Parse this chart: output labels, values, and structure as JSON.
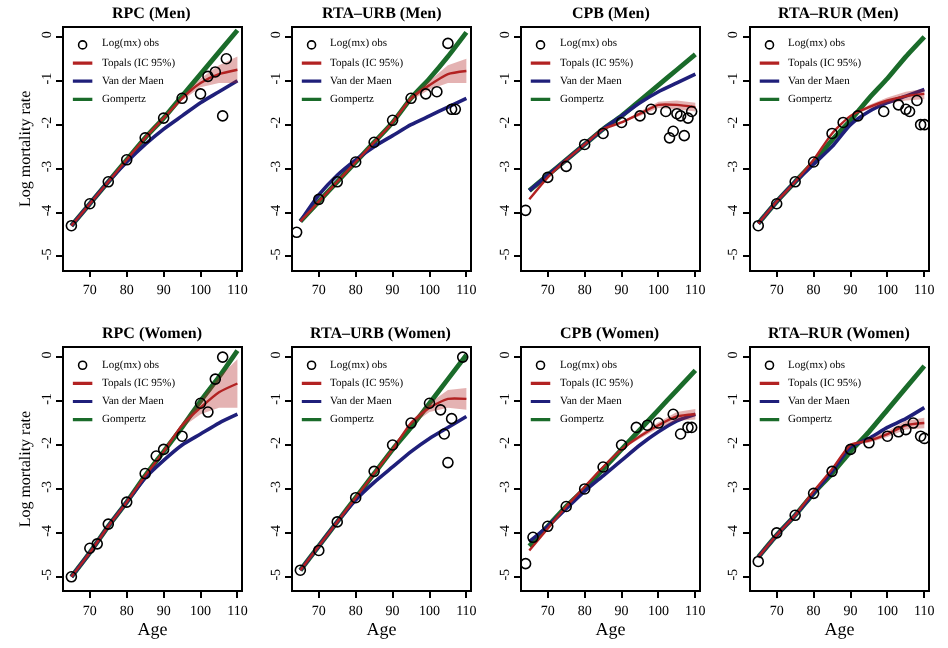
{
  "chart_data": [
    {
      "type": "line",
      "title": "RPC (Men)",
      "ylabel": "Log mortality rate",
      "x": [
        65,
        70,
        75,
        80,
        85,
        90,
        95,
        100,
        105,
        110
      ],
      "xlim": [
        63,
        111
      ],
      "xticks": [
        70,
        80,
        90,
        100,
        110
      ],
      "ylim": [
        -5.3,
        0.2
      ],
      "yticks": [
        -5,
        -4,
        -3,
        -2,
        -1,
        0
      ],
      "legend": "top left",
      "series": [
        {
          "name": "Log(mx) obs",
          "type": "scatter",
          "marker": "circle",
          "color": "#000000",
          "x": [
            65,
            70,
            75,
            80,
            85,
            90,
            95,
            100,
            102,
            104,
            106,
            107
          ],
          "values": [
            -4.3,
            -3.8,
            -3.3,
            -2.8,
            -2.3,
            -1.85,
            -1.4,
            -1.3,
            -0.9,
            -0.8,
            -1.8,
            -0.5
          ]
        },
        {
          "name": "Topals (IC 95%)",
          "marker": "none",
          "color": "#b22222",
          "values": [
            -4.3,
            -3.8,
            -3.3,
            -2.8,
            -2.3,
            -1.85,
            -1.4,
            -1.05,
            -0.85,
            -0.75
          ],
          "lower": [
            -4.3,
            -3.8,
            -3.3,
            -2.8,
            -2.3,
            -1.85,
            -1.45,
            -1.15,
            -1.05,
            -1.05
          ],
          "upper": [
            -4.3,
            -3.8,
            -3.3,
            -2.8,
            -2.3,
            -1.85,
            -1.35,
            -0.95,
            -0.65,
            -0.45
          ]
        },
        {
          "name": "Van der Maen",
          "marker": "none",
          "color": "#1f1f7a",
          "values": [
            -4.3,
            -3.8,
            -3.3,
            -2.85,
            -2.45,
            -2.1,
            -1.8,
            -1.5,
            -1.25,
            -1.0
          ]
        },
        {
          "name": "Gompertz",
          "marker": "none",
          "color": "#1a6b2a",
          "values": [
            -4.3,
            -3.8,
            -3.3,
            -2.8,
            -2.3,
            -1.85,
            -1.35,
            -0.85,
            -0.35,
            0.15
          ]
        }
      ]
    },
    {
      "type": "line",
      "title": "RTA–URB (Men)",
      "x": [
        65,
        70,
        75,
        80,
        85,
        90,
        95,
        100,
        105,
        110
      ],
      "xlim": [
        63,
        111
      ],
      "xticks": [
        70,
        80,
        90,
        100,
        110
      ],
      "ylim": [
        -5.3,
        0.2
      ],
      "yticks": [
        -5,
        -4,
        -3,
        -2,
        -1,
        0
      ],
      "legend": "top left",
      "series": [
        {
          "name": "Log(mx) obs",
          "type": "scatter",
          "marker": "circle",
          "color": "#000000",
          "x": [
            64,
            70,
            75,
            80,
            85,
            90,
            95,
            99,
            102,
            105,
            106,
            107
          ],
          "values": [
            -4.45,
            -3.7,
            -3.3,
            -2.85,
            -2.4,
            -1.9,
            -1.4,
            -1.3,
            -1.25,
            -0.15,
            -1.65,
            -1.65
          ]
        },
        {
          "name": "Topals (IC 95%)",
          "marker": "none",
          "color": "#b22222",
          "values": [
            -4.2,
            -3.75,
            -3.3,
            -2.85,
            -2.4,
            -1.95,
            -1.4,
            -1.1,
            -0.85,
            -0.78
          ],
          "lower": [
            -4.2,
            -3.75,
            -3.3,
            -2.85,
            -2.4,
            -1.95,
            -1.45,
            -1.2,
            -1.05,
            -1.05
          ],
          "upper": [
            -4.2,
            -3.75,
            -3.3,
            -2.85,
            -2.4,
            -1.95,
            -1.35,
            -1.0,
            -0.65,
            -0.5
          ]
        },
        {
          "name": "Van der Maen",
          "marker": "none",
          "color": "#1f1f7a",
          "values": [
            -4.2,
            -3.6,
            -3.15,
            -2.8,
            -2.5,
            -2.25,
            -2.0,
            -1.8,
            -1.6,
            -1.4
          ]
        },
        {
          "name": "Gompertz",
          "marker": "none",
          "color": "#1a6b2a",
          "values": [
            -4.2,
            -3.75,
            -3.3,
            -2.85,
            -2.4,
            -1.95,
            -1.4,
            -0.95,
            -0.45,
            0.1
          ]
        }
      ]
    },
    {
      "type": "line",
      "title": "CPB (Men)",
      "x": [
        65,
        70,
        75,
        80,
        85,
        90,
        95,
        100,
        105,
        110
      ],
      "xlim": [
        63,
        111
      ],
      "xticks": [
        70,
        80,
        90,
        100,
        110
      ],
      "ylim": [
        -5.3,
        0.2
      ],
      "yticks": [
        -5,
        -4,
        -3,
        -2,
        -1,
        0
      ],
      "legend": "top left",
      "series": [
        {
          "name": "Log(mx) obs",
          "type": "scatter",
          "marker": "circle",
          "color": "#000000",
          "x": [
            64,
            70,
            75,
            80,
            85,
            90,
            95,
            98,
            102,
            103,
            104,
            105,
            106,
            107,
            108,
            109
          ],
          "values": [
            -3.95,
            -3.2,
            -2.95,
            -2.45,
            -2.2,
            -1.95,
            -1.8,
            -1.65,
            -1.7,
            -2.3,
            -2.15,
            -1.75,
            -1.8,
            -2.25,
            -1.85,
            -1.7
          ]
        },
        {
          "name": "Topals (IC 95%)",
          "marker": "none",
          "color": "#b22222",
          "values": [
            -3.7,
            -3.2,
            -2.8,
            -2.45,
            -2.1,
            -1.95,
            -1.75,
            -1.55,
            -1.55,
            -1.6
          ],
          "lower": [
            -3.7,
            -3.2,
            -2.8,
            -2.45,
            -2.1,
            -1.95,
            -1.8,
            -1.62,
            -1.65,
            -1.7
          ],
          "upper": [
            -3.7,
            -3.2,
            -2.8,
            -2.45,
            -2.1,
            -1.95,
            -1.7,
            -1.48,
            -1.45,
            -1.5
          ]
        },
        {
          "name": "Van der Maen",
          "marker": "none",
          "color": "#1f1f7a",
          "values": [
            -3.5,
            -3.15,
            -2.8,
            -2.45,
            -2.1,
            -1.8,
            -1.5,
            -1.25,
            -1.05,
            -0.85
          ]
        },
        {
          "name": "Gompertz",
          "marker": "none",
          "color": "#1a6b2a",
          "values": [
            -3.5,
            -3.15,
            -2.8,
            -2.45,
            -2.1,
            -1.8,
            -1.45,
            -1.1,
            -0.75,
            -0.4
          ]
        }
      ]
    },
    {
      "type": "line",
      "title": "RTA–RUR (Men)",
      "x": [
        65,
        70,
        75,
        80,
        85,
        90,
        95,
        100,
        105,
        110
      ],
      "xlim": [
        63,
        111
      ],
      "xticks": [
        70,
        80,
        90,
        100,
        110
      ],
      "ylim": [
        -5.3,
        0.2
      ],
      "yticks": [
        -5,
        -4,
        -3,
        -2,
        -1,
        0
      ],
      "legend": "top left",
      "series": [
        {
          "name": "Log(mx) obs",
          "type": "scatter",
          "marker": "circle",
          "color": "#000000",
          "x": [
            65,
            70,
            75,
            80,
            85,
            88,
            92,
            99,
            103,
            105,
            106,
            108,
            109,
            110
          ],
          "values": [
            -4.3,
            -3.8,
            -3.3,
            -2.85,
            -2.2,
            -1.95,
            -1.8,
            -1.7,
            -1.55,
            -1.65,
            -1.7,
            -1.45,
            -2.0,
            -2.0
          ]
        },
        {
          "name": "Topals (IC 95%)",
          "marker": "none",
          "color": "#b22222",
          "values": [
            -4.25,
            -3.75,
            -3.3,
            -2.8,
            -2.2,
            -1.8,
            -1.6,
            -1.45,
            -1.35,
            -1.3
          ],
          "lower": [
            -4.25,
            -3.75,
            -3.3,
            -2.8,
            -2.2,
            -1.8,
            -1.65,
            -1.52,
            -1.45,
            -1.42
          ],
          "upper": [
            -4.25,
            -3.75,
            -3.3,
            -2.8,
            -2.2,
            -1.8,
            -1.55,
            -1.38,
            -1.25,
            -1.18
          ]
        },
        {
          "name": "Van der Maen",
          "marker": "none",
          "color": "#1f1f7a",
          "values": [
            -4.25,
            -3.75,
            -3.3,
            -2.9,
            -2.5,
            -2.0,
            -1.7,
            -1.5,
            -1.35,
            -1.2
          ]
        },
        {
          "name": "Gompertz",
          "marker": "none",
          "color": "#1a6b2a",
          "values": [
            -4.25,
            -3.75,
            -3.3,
            -2.85,
            -2.35,
            -1.9,
            -1.4,
            -0.95,
            -0.45,
            0.0
          ]
        }
      ]
    },
    {
      "type": "line",
      "title": "RPC (Women)",
      "ylabel": "Log mortality rate",
      "xlabel": "Age",
      "x": [
        65,
        70,
        75,
        80,
        85,
        90,
        95,
        100,
        105,
        110
      ],
      "xlim": [
        63,
        111
      ],
      "xticks": [
        70,
        80,
        90,
        100,
        110
      ],
      "ylim": [
        -5.3,
        0.2
      ],
      "yticks": [
        -5,
        -4,
        -3,
        -2,
        -1,
        0
      ],
      "legend": "top left",
      "series": [
        {
          "name": "Log(mx) obs",
          "type": "scatter",
          "marker": "circle",
          "color": "#000000",
          "x": [
            65,
            70,
            72,
            75,
            80,
            85,
            88,
            90,
            95,
            100,
            102,
            104,
            106
          ],
          "values": [
            -5.0,
            -4.35,
            -4.25,
            -3.8,
            -3.3,
            -2.65,
            -2.25,
            -2.1,
            -1.8,
            -1.05,
            -1.25,
            -0.5,
            0.0
          ]
        },
        {
          "name": "Topals (IC 95%)",
          "marker": "none",
          "color": "#b22222",
          "values": [
            -5.0,
            -4.45,
            -3.85,
            -3.3,
            -2.7,
            -2.15,
            -1.55,
            -1.15,
            -0.8,
            -0.6
          ],
          "lower": [
            -5.0,
            -4.45,
            -3.85,
            -3.3,
            -2.7,
            -2.15,
            -1.6,
            -1.3,
            -1.15,
            -1.15
          ],
          "upper": [
            -5.0,
            -4.45,
            -3.85,
            -3.3,
            -2.7,
            -2.15,
            -1.5,
            -1.0,
            -0.45,
            -0.05
          ]
        },
        {
          "name": "Van der Maen",
          "marker": "none",
          "color": "#1f1f7a",
          "values": [
            -5.0,
            -4.45,
            -3.85,
            -3.3,
            -2.75,
            -2.35,
            -2.0,
            -1.75,
            -1.5,
            -1.3
          ]
        },
        {
          "name": "Gompertz",
          "marker": "none",
          "color": "#1a6b2a",
          "values": [
            -5.0,
            -4.45,
            -3.85,
            -3.3,
            -2.7,
            -2.15,
            -1.6,
            -1.0,
            -0.45,
            0.15
          ]
        }
      ]
    },
    {
      "type": "line",
      "title": "RTA–URB (Women)",
      "xlabel": "Age",
      "x": [
        65,
        70,
        75,
        80,
        85,
        90,
        95,
        100,
        105,
        110
      ],
      "xlim": [
        63,
        111
      ],
      "xticks": [
        70,
        80,
        90,
        100,
        110
      ],
      "ylim": [
        -5.3,
        0.2
      ],
      "yticks": [
        -5,
        -4,
        -3,
        -2,
        -1,
        0
      ],
      "legend": "top left",
      "series": [
        {
          "name": "Log(mx) obs",
          "type": "scatter",
          "marker": "circle",
          "color": "#000000",
          "x": [
            65,
            70,
            75,
            80,
            85,
            90,
            95,
            100,
            103,
            104,
            105,
            106,
            109
          ],
          "values": [
            -4.85,
            -4.4,
            -3.75,
            -3.2,
            -2.6,
            -2.0,
            -1.5,
            -1.05,
            -1.2,
            -1.75,
            -2.4,
            -1.4,
            0.0
          ]
        },
        {
          "name": "Topals (IC 95%)",
          "marker": "none",
          "color": "#b22222",
          "values": [
            -4.85,
            -4.3,
            -3.75,
            -3.2,
            -2.65,
            -2.1,
            -1.5,
            -1.15,
            -0.95,
            -0.95
          ],
          "lower": [
            -4.85,
            -4.3,
            -3.75,
            -3.2,
            -2.65,
            -2.1,
            -1.55,
            -1.25,
            -1.15,
            -1.2
          ],
          "upper": [
            -4.85,
            -4.3,
            -3.75,
            -3.2,
            -2.65,
            -2.1,
            -1.45,
            -1.05,
            -0.75,
            -0.7
          ]
        },
        {
          "name": "Van der Maen",
          "marker": "none",
          "color": "#1f1f7a",
          "values": [
            -4.85,
            -4.3,
            -3.75,
            -3.25,
            -2.85,
            -2.5,
            -2.15,
            -1.85,
            -1.6,
            -1.35
          ]
        },
        {
          "name": "Gompertz",
          "marker": "none",
          "color": "#1a6b2a",
          "values": [
            -4.85,
            -4.3,
            -3.75,
            -3.2,
            -2.65,
            -2.1,
            -1.6,
            -1.05,
            -0.5,
            0.05
          ]
        }
      ]
    },
    {
      "type": "line",
      "title": "CPB (Women)",
      "xlabel": "Age",
      "x": [
        65,
        70,
        75,
        80,
        85,
        90,
        95,
        100,
        105,
        110
      ],
      "xlim": [
        63,
        111
      ],
      "xticks": [
        70,
        80,
        90,
        100,
        110
      ],
      "ylim": [
        -5.3,
        0.2
      ],
      "yticks": [
        -5,
        -4,
        -3,
        -2,
        -1,
        0
      ],
      "legend": "top left",
      "series": [
        {
          "name": "Log(mx) obs",
          "type": "scatter",
          "marker": "circle",
          "color": "#000000",
          "x": [
            64,
            66,
            70,
            75,
            80,
            85,
            90,
            94,
            97,
            100,
            104,
            106,
            108,
            109
          ],
          "values": [
            -4.7,
            -4.1,
            -3.85,
            -3.4,
            -3.0,
            -2.5,
            -2.0,
            -1.6,
            -1.55,
            -1.5,
            -1.3,
            -1.75,
            -1.6,
            -1.6
          ]
        },
        {
          "name": "Topals (IC 95%)",
          "marker": "none",
          "color": "#b22222",
          "values": [
            -4.4,
            -3.9,
            -3.4,
            -2.95,
            -2.5,
            -2.1,
            -1.8,
            -1.55,
            -1.35,
            -1.3
          ],
          "lower": [
            -4.4,
            -3.9,
            -3.4,
            -2.95,
            -2.5,
            -2.1,
            -1.85,
            -1.62,
            -1.45,
            -1.42
          ],
          "upper": [
            -4.4,
            -3.9,
            -3.4,
            -2.95,
            -2.5,
            -2.1,
            -1.75,
            -1.48,
            -1.25,
            -1.18
          ]
        },
        {
          "name": "Van der Maen",
          "marker": "none",
          "color": "#1f1f7a",
          "values": [
            -4.2,
            -3.85,
            -3.45,
            -3.05,
            -2.7,
            -2.35,
            -2.0,
            -1.7,
            -1.45,
            -1.3
          ]
        },
        {
          "name": "Gompertz",
          "marker": "none",
          "color": "#1a6b2a",
          "values": [
            -4.3,
            -3.85,
            -3.4,
            -3.0,
            -2.55,
            -2.1,
            -1.65,
            -1.2,
            -0.75,
            -0.3
          ]
        }
      ]
    },
    {
      "type": "line",
      "title": "RTA–RUR (Women)",
      "xlabel": "Age",
      "x": [
        65,
        70,
        75,
        80,
        85,
        90,
        95,
        100,
        105,
        110
      ],
      "xlim": [
        63,
        111
      ],
      "xticks": [
        70,
        80,
        90,
        100,
        110
      ],
      "ylim": [
        -5.3,
        0.2
      ],
      "yticks": [
        -5,
        -4,
        -3,
        -2,
        -1,
        0
      ],
      "legend": "top left",
      "series": [
        {
          "name": "Log(mx) obs",
          "type": "scatter",
          "marker": "circle",
          "color": "#000000",
          "x": [
            65,
            70,
            75,
            80,
            85,
            90,
            95,
            100,
            103,
            105,
            107,
            109,
            110
          ],
          "values": [
            -4.65,
            -4.0,
            -3.6,
            -3.1,
            -2.6,
            -2.1,
            -1.95,
            -1.8,
            -1.7,
            -1.65,
            -1.5,
            -1.8,
            -1.85
          ]
        },
        {
          "name": "Topals (IC 95%)",
          "marker": "none",
          "color": "#b22222",
          "values": [
            -4.55,
            -4.05,
            -3.6,
            -3.05,
            -2.55,
            -2.0,
            -1.9,
            -1.75,
            -1.55,
            -1.5
          ],
          "lower": [
            -4.55,
            -4.05,
            -3.6,
            -3.05,
            -2.55,
            -2.0,
            -1.95,
            -1.82,
            -1.65,
            -1.62
          ],
          "upper": [
            -4.55,
            -4.05,
            -3.6,
            -3.05,
            -2.55,
            -2.0,
            -1.85,
            -1.68,
            -1.45,
            -1.38
          ]
        },
        {
          "name": "Van der Maen",
          "marker": "none",
          "color": "#1f1f7a",
          "values": [
            -4.55,
            -4.05,
            -3.6,
            -3.1,
            -2.6,
            -2.05,
            -1.85,
            -1.6,
            -1.4,
            -1.15
          ]
        },
        {
          "name": "Gompertz",
          "marker": "none",
          "color": "#1a6b2a",
          "values": [
            -4.55,
            -4.05,
            -3.6,
            -3.1,
            -2.65,
            -2.15,
            -1.7,
            -1.2,
            -0.7,
            -0.2
          ]
        }
      ]
    }
  ]
}
